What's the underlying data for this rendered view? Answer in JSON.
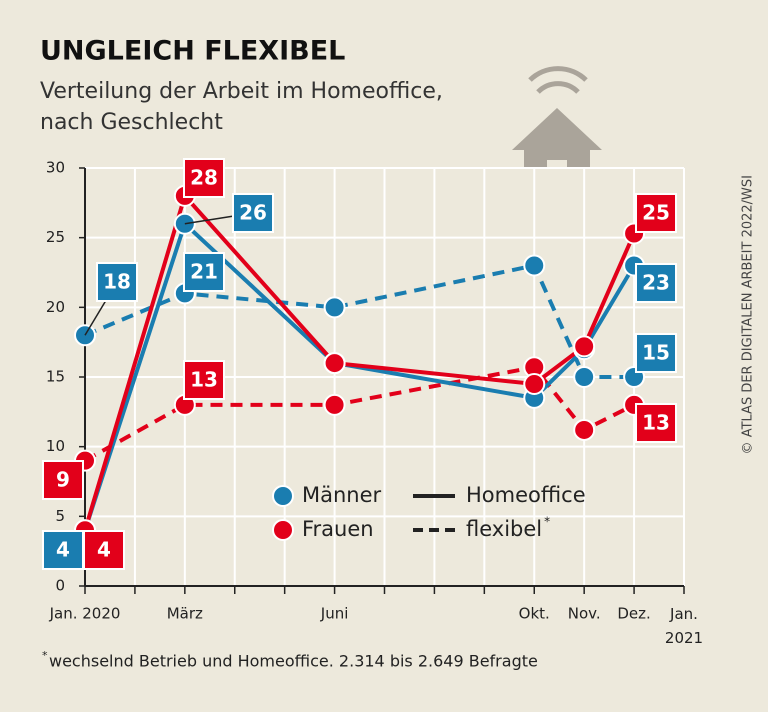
{
  "chart_data": {
    "type": "line",
    "title": "UNGLEICH FLEXIBEL",
    "subtitle": [
      "Verteilung der Arbeit im Homeoffice,",
      "nach Geschlecht"
    ],
    "source": "© ATLAS DER DIGITALEN ARBEIT 2022/WSI",
    "footnote": {
      "mark": "*",
      "text": "wechselnd Betrieb und Homeoffice. 2.314 bis 2.649 Befragte"
    },
    "categories": [
      "Jan. 2020",
      null,
      "März",
      null,
      null,
      "Juni",
      null,
      null,
      null,
      "Okt.",
      "Nov.",
      "Dez.",
      "Jan. 2021"
    ],
    "ylim": [
      0,
      30
    ],
    "yticks": [
      0,
      5,
      10,
      15,
      20,
      25,
      30
    ],
    "grid": true,
    "legend": {
      "colors": [
        {
          "name": "Männer",
          "color": "#1a7db0"
        },
        {
          "name": "Frauen",
          "color": "#e2001a"
        }
      ],
      "styles": [
        {
          "name": "Homeoffice",
          "dashed": false
        },
        {
          "name": "flexibel",
          "dashed": true,
          "note_mark": "*"
        }
      ]
    },
    "series": [
      {
        "color": 0,
        "style": 1,
        "values": [
          18,
          null,
          21,
          null,
          null,
          20,
          null,
          null,
          null,
          23,
          15,
          15,
          null
        ],
        "value_labels": [
          "18",
          null,
          "21",
          null,
          null,
          null,
          null,
          null,
          null,
          null,
          null,
          "15",
          null
        ]
      },
      {
        "color": 1,
        "style": 1,
        "values": [
          9,
          null,
          13,
          null,
          null,
          13,
          null,
          null,
          null,
          15.7,
          11.2,
          13,
          null
        ],
        "value_labels": [
          "9",
          null,
          "13",
          null,
          null,
          null,
          null,
          null,
          null,
          null,
          null,
          "13",
          null
        ]
      },
      {
        "color": 0,
        "style": 0,
        "values": [
          4,
          null,
          26,
          null,
          null,
          16,
          null,
          null,
          null,
          13.5,
          17,
          23,
          null
        ],
        "value_labels": [
          "4",
          null,
          "26",
          null,
          null,
          null,
          null,
          null,
          null,
          null,
          null,
          "23",
          null
        ]
      },
      {
        "color": 1,
        "style": 0,
        "values": [
          4,
          null,
          28,
          null,
          null,
          16,
          null,
          null,
          null,
          14.5,
          17.2,
          25.3,
          null
        ],
        "value_labels": [
          "4",
          null,
          "28",
          null,
          null,
          null,
          null,
          null,
          null,
          null,
          null,
          "25",
          null
        ]
      }
    ]
  }
}
